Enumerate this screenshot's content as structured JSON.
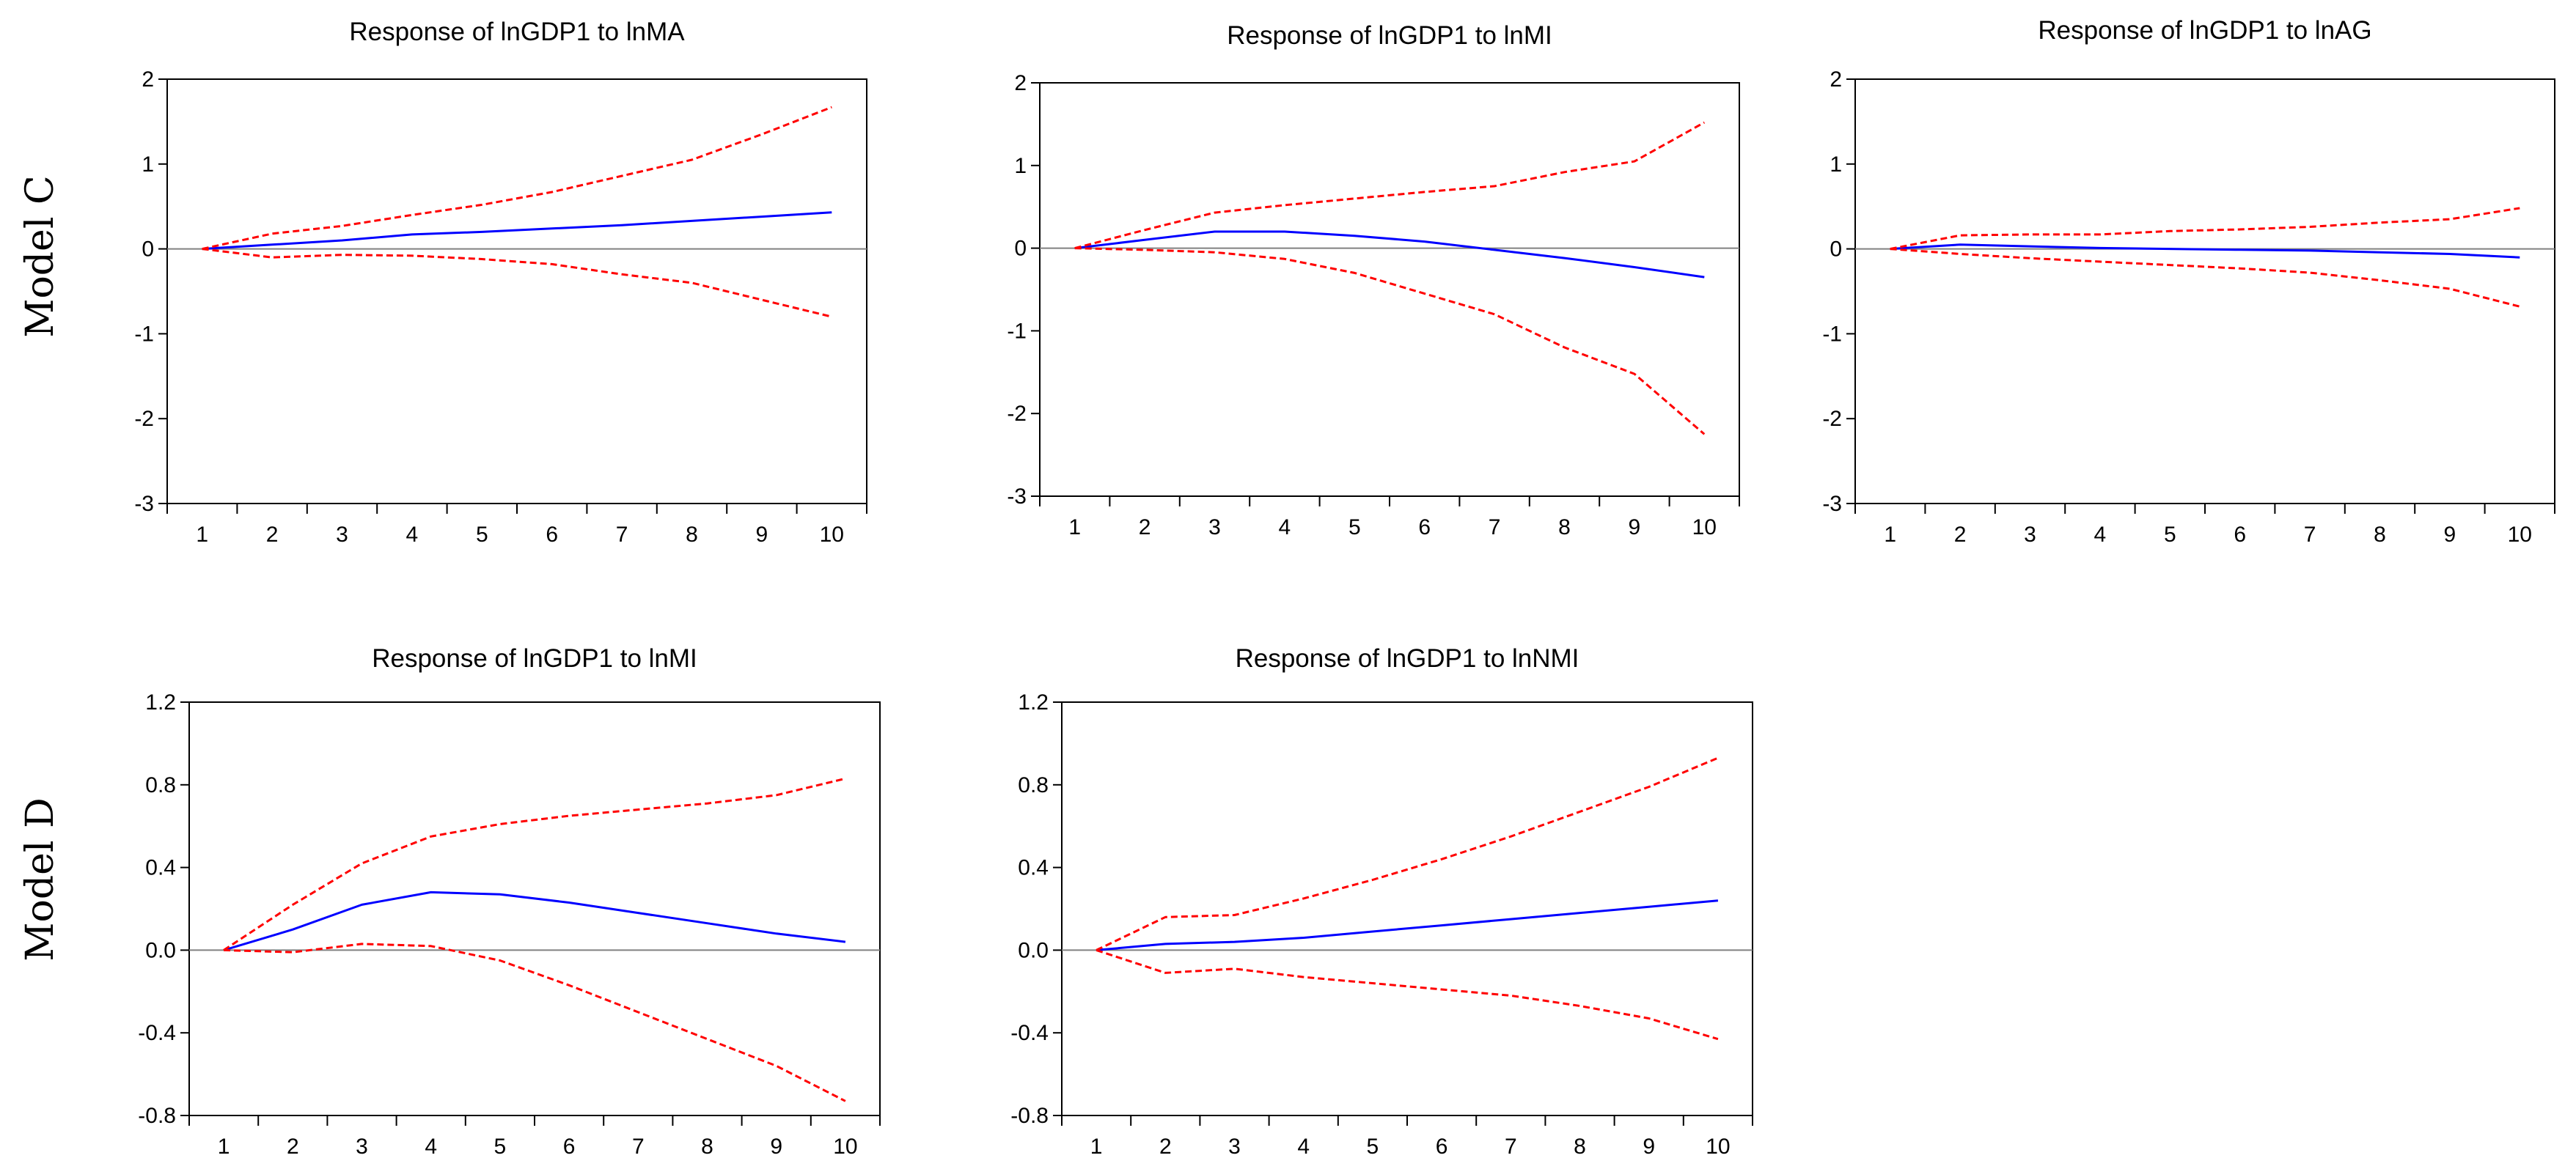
{
  "row_labels": [
    "Model C",
    "Model D"
  ],
  "chart_data": [
    {
      "type": "line",
      "title": "Response of lnGDP1 to lnMA",
      "model": "Model C",
      "x": [
        1,
        2,
        3,
        4,
        5,
        6,
        7,
        8,
        9,
        10
      ],
      "xticks": [
        "1",
        "2",
        "3",
        "4",
        "5",
        "6",
        "7",
        "8",
        "9",
        "10"
      ],
      "ylim": [
        -3,
        2
      ],
      "yticks": [
        "2",
        "1",
        "0",
        "-1",
        "-2",
        "-3"
      ],
      "ytick_values": [
        2,
        1,
        0,
        -1,
        -2,
        -3
      ],
      "series": [
        {
          "name": "response",
          "color": "#0000ff",
          "style": "solid",
          "values": [
            0,
            0.05,
            0.1,
            0.17,
            0.2,
            0.24,
            0.28,
            0.33,
            0.38,
            0.43
          ]
        },
        {
          "name": "upper",
          "color": "#ff0000",
          "style": "dashed",
          "values": [
            0,
            0.18,
            0.27,
            0.4,
            0.52,
            0.67,
            0.86,
            1.05,
            1.35,
            1.67
          ]
        },
        {
          "name": "lower",
          "color": "#ff0000",
          "style": "dashed",
          "values": [
            0,
            -0.1,
            -0.07,
            -0.08,
            -0.12,
            -0.18,
            -0.3,
            -0.4,
            -0.6,
            -0.8
          ]
        }
      ]
    },
    {
      "type": "line",
      "title": "Response of lnGDP1 to lnMI",
      "model": "Model C",
      "x": [
        1,
        2,
        3,
        4,
        5,
        6,
        7,
        8,
        9,
        10
      ],
      "xticks": [
        "1",
        "2",
        "3",
        "4",
        "5",
        "6",
        "7",
        "8",
        "9",
        "10"
      ],
      "ylim": [
        -3,
        2
      ],
      "yticks": [
        "2",
        "1",
        "0",
        "-1",
        "-2",
        "-3"
      ],
      "ytick_values": [
        2,
        1,
        0,
        -1,
        -2,
        -3
      ],
      "series": [
        {
          "name": "response",
          "color": "#0000ff",
          "style": "solid",
          "values": [
            0,
            0.1,
            0.2,
            0.2,
            0.15,
            0.08,
            -0.02,
            -0.12,
            -0.23,
            -0.35
          ]
        },
        {
          "name": "upper",
          "color": "#ff0000",
          "style": "dashed",
          "values": [
            0,
            0.22,
            0.43,
            0.52,
            0.6,
            0.68,
            0.75,
            0.92,
            1.05,
            1.52
          ]
        },
        {
          "name": "lower",
          "color": "#ff0000",
          "style": "dashed",
          "values": [
            0,
            -0.02,
            -0.05,
            -0.13,
            -0.3,
            -0.55,
            -0.8,
            -1.2,
            -1.52,
            -2.25
          ]
        }
      ]
    },
    {
      "type": "line",
      "title": "Response of lnGDP1 to lnAG",
      "model": "Model C",
      "x": [
        1,
        2,
        3,
        4,
        5,
        6,
        7,
        8,
        9,
        10
      ],
      "xticks": [
        "1",
        "2",
        "3",
        "4",
        "5",
        "6",
        "7",
        "8",
        "9",
        "10"
      ],
      "ylim": [
        -3,
        2
      ],
      "yticks": [
        "2",
        "1",
        "0",
        "-1",
        "-2",
        "-3"
      ],
      "ytick_values": [
        2,
        1,
        0,
        -1,
        -2,
        -3
      ],
      "series": [
        {
          "name": "response",
          "color": "#0000ff",
          "style": "solid",
          "values": [
            0,
            0.05,
            0.03,
            0.01,
            0.0,
            -0.01,
            -0.02,
            -0.04,
            -0.06,
            -0.1
          ]
        },
        {
          "name": "upper",
          "color": "#ff0000",
          "style": "dashed",
          "values": [
            0,
            0.16,
            0.17,
            0.17,
            0.21,
            0.23,
            0.26,
            0.31,
            0.35,
            0.48
          ]
        },
        {
          "name": "lower",
          "color": "#ff0000",
          "style": "dashed",
          "values": [
            0,
            -0.06,
            -0.11,
            -0.15,
            -0.19,
            -0.23,
            -0.28,
            -0.37,
            -0.47,
            -0.68
          ]
        }
      ]
    },
    {
      "type": "line",
      "title": "Response of lnGDP1 to lnMI",
      "model": "Model D",
      "x": [
        1,
        2,
        3,
        4,
        5,
        6,
        7,
        8,
        9,
        10
      ],
      "xticks": [
        "1",
        "2",
        "3",
        "4",
        "5",
        "6",
        "7",
        "8",
        "9",
        "10"
      ],
      "ylim": [
        -0.8,
        1.2
      ],
      "yticks": [
        "1.2",
        "0.8",
        "0.4",
        "0.0",
        "-0.4",
        "-0.8"
      ],
      "ytick_values": [
        1.2,
        0.8,
        0.4,
        0.0,
        -0.4,
        -0.8
      ],
      "series": [
        {
          "name": "response",
          "color": "#0000ff",
          "style": "solid",
          "values": [
            0,
            0.1,
            0.22,
            0.28,
            0.27,
            0.23,
            0.18,
            0.13,
            0.08,
            0.04
          ]
        },
        {
          "name": "upper",
          "color": "#ff0000",
          "style": "dashed",
          "values": [
            0,
            0.22,
            0.42,
            0.55,
            0.61,
            0.65,
            0.68,
            0.71,
            0.75,
            0.83
          ]
        },
        {
          "name": "lower",
          "color": "#ff0000",
          "style": "dashed",
          "values": [
            0,
            -0.01,
            0.03,
            0.02,
            -0.05,
            -0.17,
            -0.3,
            -0.43,
            -0.56,
            -0.73
          ]
        }
      ]
    },
    {
      "type": "line",
      "title": "Response of lnGDP1 to lnNMI",
      "model": "Model D",
      "x": [
        1,
        2,
        3,
        4,
        5,
        6,
        7,
        8,
        9,
        10
      ],
      "xticks": [
        "1",
        "2",
        "3",
        "4",
        "5",
        "6",
        "7",
        "8",
        "9",
        "10"
      ],
      "ylim": [
        -0.8,
        1.2
      ],
      "yticks": [
        "1.2",
        "0.8",
        "0.4",
        "0.0",
        "-0.4",
        "-0.8"
      ],
      "ytick_values": [
        1.2,
        0.8,
        0.4,
        0.0,
        -0.4,
        -0.8
      ],
      "series": [
        {
          "name": "response",
          "color": "#0000ff",
          "style": "solid",
          "values": [
            0,
            0.03,
            0.04,
            0.06,
            0.09,
            0.12,
            0.15,
            0.18,
            0.21,
            0.24
          ]
        },
        {
          "name": "upper",
          "color": "#ff0000",
          "style": "dashed",
          "values": [
            0,
            0.16,
            0.17,
            0.25,
            0.34,
            0.44,
            0.55,
            0.67,
            0.79,
            0.93
          ]
        },
        {
          "name": "lower",
          "color": "#ff0000",
          "style": "dashed",
          "values": [
            0,
            -0.11,
            -0.09,
            -0.13,
            -0.16,
            -0.19,
            -0.22,
            -0.27,
            -0.33,
            -0.43
          ]
        }
      ]
    }
  ]
}
